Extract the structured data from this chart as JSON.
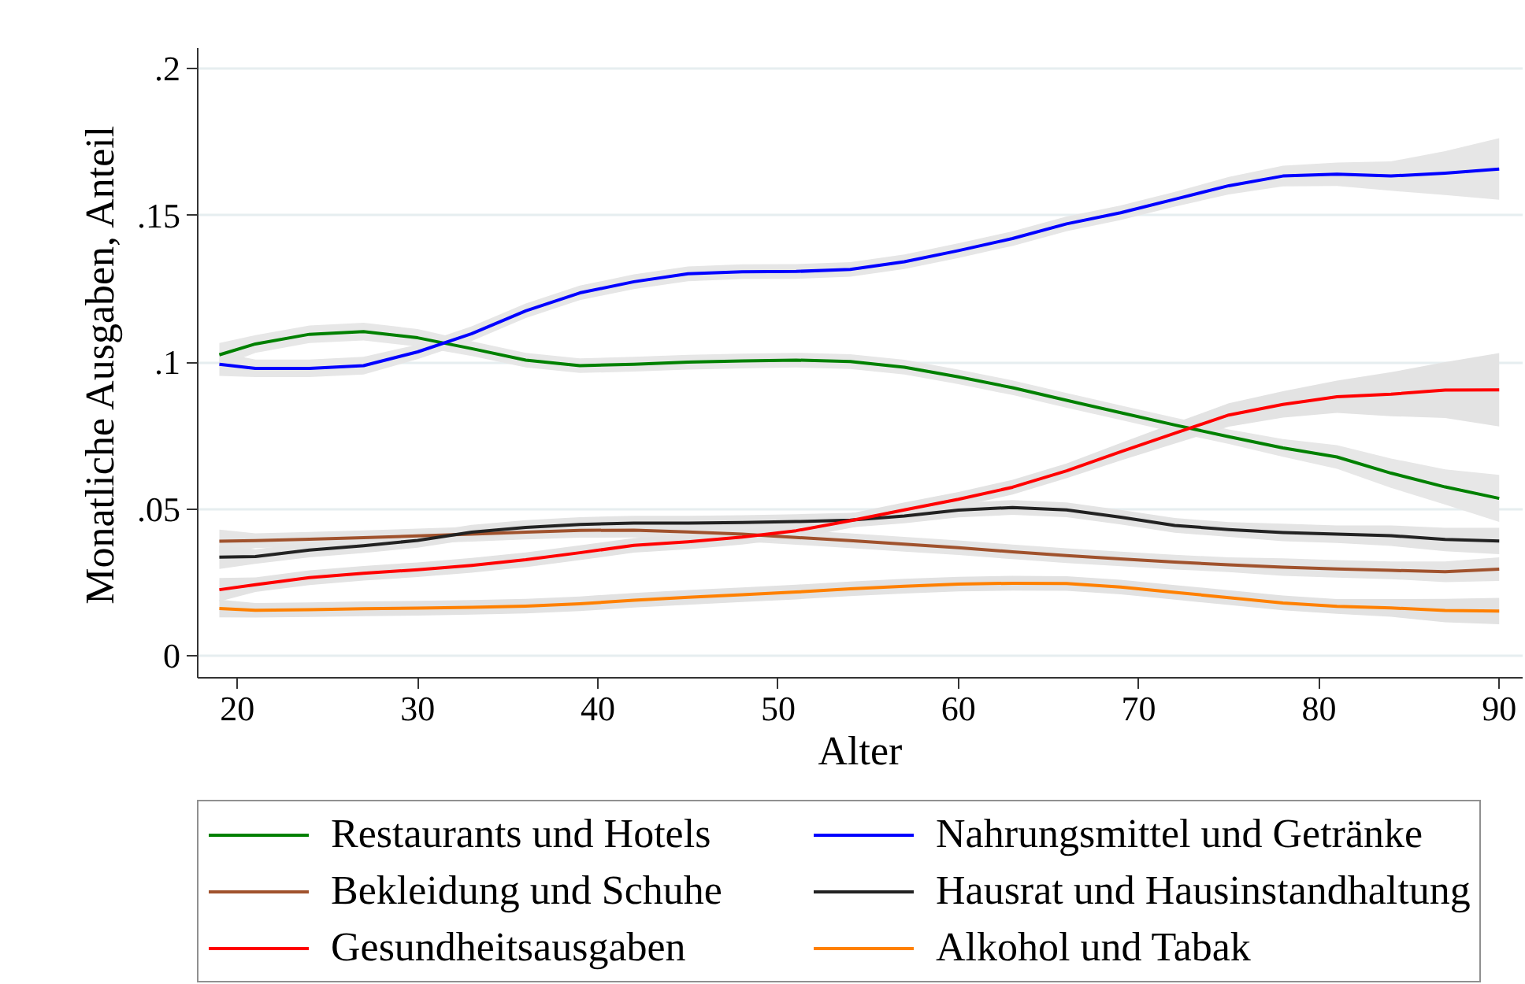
{
  "chart_data": {
    "type": "line",
    "xlabel": "Alter",
    "ylabel": "Monatliche Ausgaben, Anteil",
    "x": [
      19,
      21,
      24,
      27,
      30,
      33,
      36,
      39,
      42,
      45,
      48,
      51,
      54,
      57,
      60,
      63,
      66,
      69,
      72,
      75,
      78,
      81,
      84,
      87,
      90
    ],
    "xlim": [
      17.8,
      91.3
    ],
    "xticks": [
      20,
      30,
      40,
      50,
      60,
      70,
      80,
      90
    ],
    "ylim": [
      -0.0075,
      0.207
    ],
    "yticks": [
      0,
      {
        "value": 0.05,
        "label": ".05"
      },
      {
        "value": 0.1,
        "label": ".1"
      },
      {
        "value": 0.15,
        "label": ".15"
      },
      {
        "value": 0.2,
        "label": ".2"
      }
    ],
    "grid": "y",
    "legend": "bottom",
    "series": [
      {
        "name": "Restaurants und Hotels",
        "color": "#008000",
        "values": [
          0.1025,
          0.1062,
          0.1095,
          0.1104,
          0.1083,
          0.1046,
          0.1007,
          0.0988,
          0.0993,
          0.1,
          0.1004,
          0.1007,
          0.1002,
          0.0983,
          0.095,
          0.0913,
          0.087,
          0.0828,
          0.0786,
          0.0746,
          0.0708,
          0.0677,
          0.0622,
          0.0575,
          0.0536
        ],
        "lower": [
          0.0985,
          0.1032,
          0.1065,
          0.1074,
          0.1053,
          0.1021,
          0.0982,
          0.0963,
          0.0968,
          0.0975,
          0.0979,
          0.0982,
          0.0977,
          0.0958,
          0.0925,
          0.0888,
          0.0845,
          0.0803,
          0.0761,
          0.0721,
          0.0678,
          0.0637,
          0.0572,
          0.0515,
          0.0456
        ],
        "upper": [
          0.1065,
          0.1092,
          0.1125,
          0.1134,
          0.1113,
          0.1071,
          0.1032,
          0.1013,
          0.1018,
          0.1025,
          0.1029,
          0.1032,
          0.1027,
          0.1008,
          0.0975,
          0.0938,
          0.0895,
          0.0853,
          0.0811,
          0.0771,
          0.0738,
          0.0717,
          0.0672,
          0.0635,
          0.0616
        ]
      },
      {
        "name": "Nahrungsmittel und Getränke",
        "color": "#0000ff",
        "values": [
          0.0993,
          0.0979,
          0.0979,
          0.0988,
          0.1035,
          0.1097,
          0.1175,
          0.1236,
          0.1274,
          0.1301,
          0.1308,
          0.1309,
          0.1316,
          0.1342,
          0.138,
          0.1421,
          0.1471,
          0.1509,
          0.1555,
          0.1601,
          0.1634,
          0.164,
          0.1634,
          0.1644,
          0.1658
        ],
        "lower": [
          0.0953,
          0.0949,
          0.0949,
          0.0958,
          0.101,
          0.1072,
          0.115,
          0.1211,
          0.1249,
          0.1276,
          0.1283,
          0.1284,
          0.1291,
          0.1317,
          0.1355,
          0.1396,
          0.1446,
          0.1484,
          0.153,
          0.1571,
          0.1599,
          0.16,
          0.1584,
          0.1569,
          0.1553
        ],
        "upper": [
          0.1033,
          0.1009,
          0.1009,
          0.1018,
          0.106,
          0.1122,
          0.12,
          0.1261,
          0.1299,
          0.1326,
          0.1333,
          0.1334,
          0.1341,
          0.1367,
          0.1405,
          0.1446,
          0.1496,
          0.1534,
          0.158,
          0.1631,
          0.1669,
          0.168,
          0.1684,
          0.1719,
          0.1763
        ]
      },
      {
        "name": "Bekleidung und Schuhe",
        "color": "#a0522d",
        "values": [
          0.039,
          0.0392,
          0.0397,
          0.0402,
          0.0408,
          0.0414,
          0.0421,
          0.0427,
          0.0428,
          0.0422,
          0.0414,
          0.0403,
          0.0392,
          0.038,
          0.0368,
          0.0354,
          0.0341,
          0.033,
          0.0319,
          0.031,
          0.0302,
          0.0296,
          0.0291,
          0.0286,
          0.0295
        ],
        "lower": [
          0.035,
          0.0367,
          0.0372,
          0.0377,
          0.0383,
          0.0389,
          0.0396,
          0.0402,
          0.0403,
          0.0397,
          0.0389,
          0.0378,
          0.0367,
          0.0355,
          0.0343,
          0.0329,
          0.0316,
          0.0305,
          0.0294,
          0.0285,
          0.0272,
          0.0266,
          0.0261,
          0.0251,
          0.0255
        ],
        "upper": [
          0.043,
          0.0417,
          0.0422,
          0.0427,
          0.0433,
          0.0439,
          0.0446,
          0.0452,
          0.0453,
          0.0447,
          0.0439,
          0.0428,
          0.0417,
          0.0405,
          0.0393,
          0.0379,
          0.0366,
          0.0355,
          0.0344,
          0.0335,
          0.0332,
          0.0326,
          0.0321,
          0.0321,
          0.0335
        ]
      },
      {
        "name": "Hausrat und Hausinstandhaltung",
        "color": "#222222",
        "values": [
          0.0336,
          0.0338,
          0.036,
          0.0375,
          0.0393,
          0.0421,
          0.0437,
          0.0447,
          0.0452,
          0.0452,
          0.0454,
          0.0457,
          0.0462,
          0.0476,
          0.0496,
          0.0505,
          0.0497,
          0.0472,
          0.0444,
          0.043,
          0.042,
          0.0414,
          0.0409,
          0.0396,
          0.0391
        ],
        "lower": [
          0.0296,
          0.0313,
          0.0335,
          0.035,
          0.0368,
          0.0396,
          0.0412,
          0.0422,
          0.0427,
          0.0427,
          0.0429,
          0.0432,
          0.0437,
          0.0451,
          0.0471,
          0.048,
          0.0472,
          0.0447,
          0.0419,
          0.0405,
          0.039,
          0.0384,
          0.0374,
          0.0356,
          0.0346
        ],
        "upper": [
          0.0376,
          0.0363,
          0.0385,
          0.04,
          0.0418,
          0.0446,
          0.0462,
          0.0472,
          0.0477,
          0.0477,
          0.0479,
          0.0482,
          0.0487,
          0.0501,
          0.0521,
          0.053,
          0.0522,
          0.0497,
          0.0469,
          0.0455,
          0.045,
          0.0444,
          0.0444,
          0.0436,
          0.0436
        ]
      },
      {
        "name": "Gesundheitsausgaben",
        "color": "#ff0000",
        "values": [
          0.0225,
          0.0242,
          0.0266,
          0.0281,
          0.0293,
          0.0308,
          0.0327,
          0.0351,
          0.0376,
          0.0388,
          0.0404,
          0.0426,
          0.046,
          0.0497,
          0.0533,
          0.0574,
          0.063,
          0.0695,
          0.0758,
          0.082,
          0.0856,
          0.0882,
          0.0891,
          0.0905,
          0.0906
        ],
        "lower": [
          0.0185,
          0.0217,
          0.0241,
          0.0256,
          0.0268,
          0.0283,
          0.0302,
          0.0326,
          0.0351,
          0.0363,
          0.0379,
          0.0401,
          0.0435,
          0.0472,
          0.0508,
          0.0549,
          0.0605,
          0.0665,
          0.0723,
          0.078,
          0.0811,
          0.0827,
          0.0816,
          0.081,
          0.0781
        ],
        "upper": [
          0.0265,
          0.0267,
          0.0291,
          0.0306,
          0.0318,
          0.0333,
          0.0352,
          0.0376,
          0.0401,
          0.0413,
          0.0429,
          0.0451,
          0.0485,
          0.0522,
          0.0558,
          0.0599,
          0.0655,
          0.0725,
          0.0793,
          0.086,
          0.0901,
          0.0937,
          0.0966,
          0.1,
          0.1031
        ]
      },
      {
        "name": "Alkohol und Tabak",
        "color": "#ff8000",
        "values": [
          0.0161,
          0.0155,
          0.0157,
          0.016,
          0.0162,
          0.0165,
          0.0169,
          0.0177,
          0.0189,
          0.0199,
          0.0208,
          0.0217,
          0.0228,
          0.0237,
          0.0244,
          0.0247,
          0.0246,
          0.0234,
          0.0216,
          0.0198,
          0.018,
          0.0168,
          0.0163,
          0.0154,
          0.0152
        ],
        "lower": [
          0.0131,
          0.013,
          0.0132,
          0.0135,
          0.0137,
          0.014,
          0.0144,
          0.0152,
          0.0164,
          0.0174,
          0.0183,
          0.0192,
          0.0203,
          0.0212,
          0.0219,
          0.0222,
          0.0221,
          0.0209,
          0.0191,
          0.0173,
          0.0155,
          0.0143,
          0.0133,
          0.0114,
          0.0107
        ],
        "upper": [
          0.0191,
          0.018,
          0.0182,
          0.0185,
          0.0187,
          0.019,
          0.0194,
          0.0202,
          0.0214,
          0.0224,
          0.0233,
          0.0242,
          0.0253,
          0.0262,
          0.0269,
          0.0272,
          0.0271,
          0.0259,
          0.0241,
          0.0223,
          0.0205,
          0.0193,
          0.0193,
          0.0194,
          0.0197
        ]
      }
    ]
  }
}
